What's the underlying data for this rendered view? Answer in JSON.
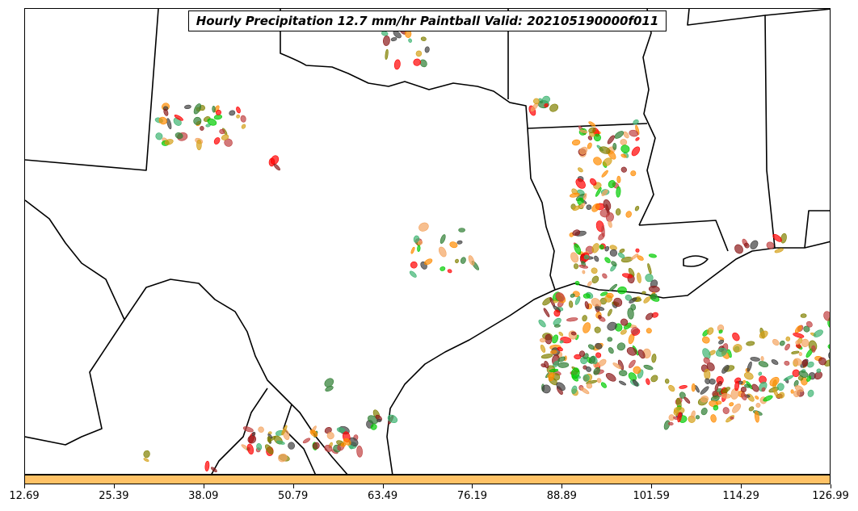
{
  "title": "Hourly Precipitation 12.7 mm/hr Paintball Valid: 202105190000f011",
  "colorbar": {
    "color": "#ffc266",
    "ticks": [
      "12.69",
      "25.39",
      "38.09",
      "50.79",
      "63.49",
      "76.19",
      "88.89",
      "101.59",
      "114.29",
      "126.99"
    ]
  },
  "colors": {
    "background": "#ffffff",
    "boundaries": "#000000",
    "members": [
      "#ff0000",
      "#ff8c00",
      "#00cc00",
      "#808000",
      "#2e7d32",
      "#8b1a1a",
      "#404040",
      "#d4a017",
      "#f4a460",
      "#c04040",
      "#3cb371"
    ]
  }
}
